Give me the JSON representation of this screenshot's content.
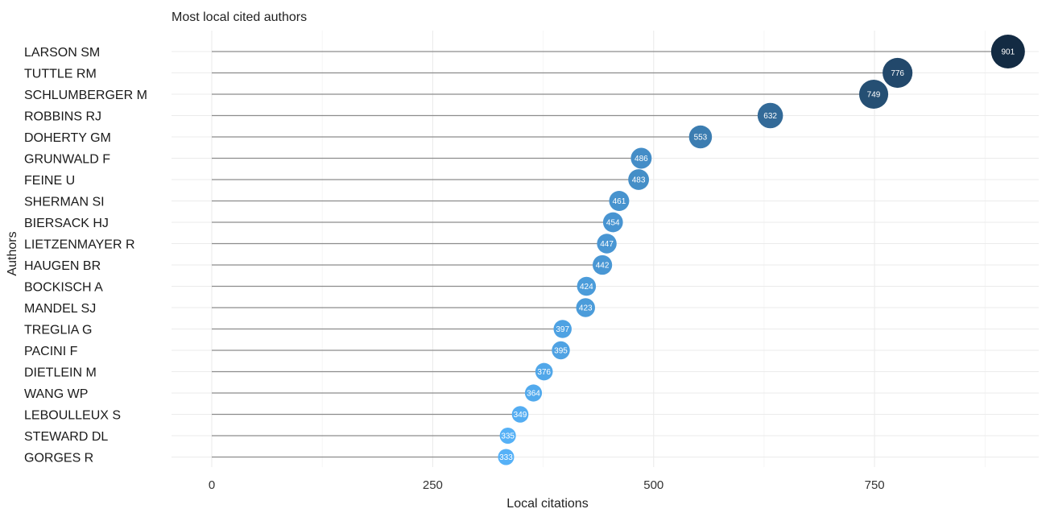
{
  "chart_data": {
    "type": "scatter",
    "title": "Most local cited authors",
    "xlabel": "Local citations",
    "ylabel": "Authors",
    "xlim": [
      -90,
      930
    ],
    "x_ticks": [
      0,
      250,
      500,
      750
    ],
    "x_tick_labels": [
      "0",
      "250",
      "500",
      "750"
    ],
    "grid": true,
    "color_scale": {
      "low": "#56B1F7",
      "high": "#132B43"
    },
    "categories": [
      "LARSON SM",
      "TUTTLE RM",
      "SCHLUMBERGER M",
      "ROBBINS RJ",
      "DOHERTY GM",
      "GRUNWALD F",
      "FEINE U",
      "SHERMAN SI",
      "BIERSACK HJ",
      "LIETZENMAYER R",
      "HAUGEN BR",
      "BOCKISCH A",
      "MANDEL SJ",
      "TREGLIA G",
      "PACINI F",
      "DIETLEIN M",
      "WANG WP",
      "LEBOULLEUX S",
      "STEWARD DL",
      "GORGES R"
    ],
    "values": [
      901,
      776,
      749,
      632,
      553,
      486,
      483,
      461,
      454,
      447,
      442,
      424,
      423,
      397,
      395,
      376,
      364,
      349,
      335,
      333
    ]
  }
}
